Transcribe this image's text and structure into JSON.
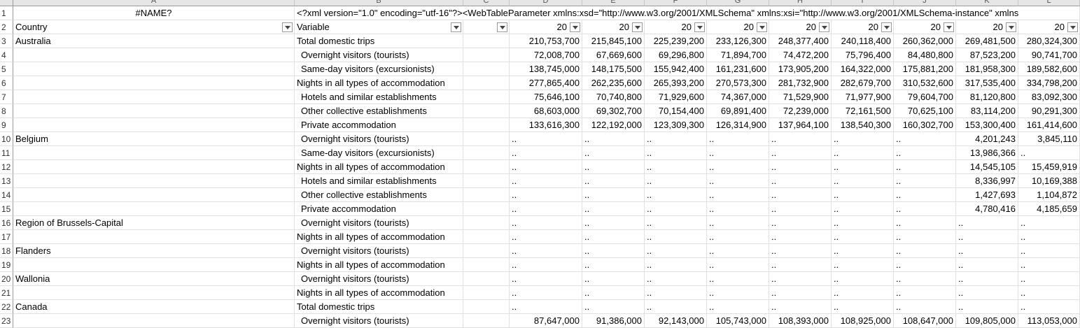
{
  "columns": [
    "A",
    "B",
    "C",
    "D",
    "E",
    "F",
    "G",
    "H",
    "I",
    "J",
    "K",
    "L"
  ],
  "row1": {
    "a": "#NAME?",
    "b": "<?xml version=\"1.0\" encoding=\"utf-16\"?><WebTableParameter xmlns:xsd=\"http://www.w3.org/2001/XMLSchema\" xmlns:xsi=\"http://www.w3.org/2001/XMLSchema-instance\" xmlns"
  },
  "headers": {
    "country": "Country",
    "variable": "Variable",
    "year_truncated": "20"
  },
  "rows": [
    {
      "n": "3",
      "country": "Australia",
      "variable": "Total domestic trips",
      "indent": false,
      "values": [
        "210,753,700",
        "215,845,100",
        "225,239,200",
        "233,126,300",
        "248,377,400",
        "240,118,400",
        "260,362,000",
        "269,481,500",
        "280,324,300"
      ]
    },
    {
      "n": "4",
      "country": "",
      "variable": "Overnight visitors (tourists)",
      "indent": true,
      "values": [
        "72,008,700",
        "67,669,600",
        "69,296,800",
        "71,894,700",
        "74,472,200",
        "75,796,400",
        "84,480,800",
        "87,523,200",
        "90,741,700"
      ]
    },
    {
      "n": "5",
      "country": "",
      "variable": "Same-day visitors (excursionists)",
      "indent": true,
      "values": [
        "138,745,000",
        "148,175,500",
        "155,942,400",
        "161,231,600",
        "173,905,200",
        "164,322,000",
        "175,881,200",
        "181,958,300",
        "189,582,600"
      ]
    },
    {
      "n": "6",
      "country": "",
      "variable": "Nights in all types of accommodation",
      "indent": false,
      "values": [
        "277,865,400",
        "262,235,600",
        "265,393,200",
        "270,573,300",
        "281,732,900",
        "282,679,700",
        "310,532,600",
        "317,535,400",
        "334,798,200"
      ]
    },
    {
      "n": "7",
      "country": "",
      "variable": "Hotels and similar establishments",
      "indent": true,
      "values": [
        "75,646,100",
        "70,740,800",
        "71,929,600",
        "74,367,000",
        "71,529,900",
        "71,977,900",
        "79,604,700",
        "81,120,800",
        "83,092,300"
      ]
    },
    {
      "n": "8",
      "country": "",
      "variable": "Other collective establishments",
      "indent": true,
      "values": [
        "68,603,000",
        "69,302,700",
        "70,154,400",
        "69,891,400",
        "72,239,000",
        "72,161,500",
        "70,625,100",
        "83,114,200",
        "90,291,300"
      ]
    },
    {
      "n": "9",
      "country": "",
      "variable": "Private accommodation",
      "indent": true,
      "values": [
        "133,616,300",
        "122,192,000",
        "123,309,300",
        "126,314,900",
        "137,964,100",
        "138,540,300",
        "160,302,700",
        "153,300,400",
        "161,414,600"
      ]
    },
    {
      "n": "10",
      "country": "Belgium",
      "variable": "Overnight visitors (tourists)",
      "indent": true,
      "values": [
        "..",
        "..",
        "..",
        "..",
        "..",
        "..",
        "..",
        "4,201,243",
        "3,845,110"
      ]
    },
    {
      "n": "11",
      "country": "",
      "variable": "Same-day visitors (excursionists)",
      "indent": true,
      "values": [
        "..",
        "..",
        "..",
        "..",
        "..",
        "..",
        "..",
        "13,986,366",
        ".."
      ]
    },
    {
      "n": "12",
      "country": "",
      "variable": "Nights in all types of accommodation",
      "indent": false,
      "values": [
        "..",
        "..",
        "..",
        "..",
        "..",
        "..",
        "..",
        "14,545,105",
        "15,459,919"
      ]
    },
    {
      "n": "13",
      "country": "",
      "variable": "Hotels and similar establishments",
      "indent": true,
      "values": [
        "..",
        "..",
        "..",
        "..",
        "..",
        "..",
        "..",
        "8,336,997",
        "10,169,388"
      ]
    },
    {
      "n": "14",
      "country": "",
      "variable": "Other collective establishments",
      "indent": true,
      "values": [
        "..",
        "..",
        "..",
        "..",
        "..",
        "..",
        "..",
        "1,427,693",
        "1,104,872"
      ]
    },
    {
      "n": "15",
      "country": "",
      "variable": "Private accommodation",
      "indent": true,
      "values": [
        "..",
        "..",
        "..",
        "..",
        "..",
        "..",
        "..",
        "4,780,416",
        "4,185,659"
      ]
    },
    {
      "n": "16",
      "country": " Region of Brussels-Capital",
      "variable": "Overnight visitors (tourists)",
      "indent": true,
      "values": [
        "..",
        "..",
        "..",
        "..",
        "..",
        "..",
        "..",
        "..",
        ".."
      ]
    },
    {
      "n": "17",
      "country": "",
      "variable": "Nights in all types of accommodation",
      "indent": false,
      "values": [
        "..",
        "..",
        "..",
        "..",
        "..",
        "..",
        "..",
        "..",
        ".."
      ]
    },
    {
      "n": "18",
      "country": " Flanders",
      "variable": "Overnight visitors (tourists)",
      "indent": true,
      "values": [
        "..",
        "..",
        "..",
        "..",
        "..",
        "..",
        "..",
        "..",
        ".."
      ]
    },
    {
      "n": "19",
      "country": "",
      "variable": "Nights in all types of accommodation",
      "indent": false,
      "values": [
        "..",
        "..",
        "..",
        "..",
        "..",
        "..",
        "..",
        "..",
        ".."
      ]
    },
    {
      "n": "20",
      "country": " Wallonia",
      "variable": "Overnight visitors (tourists)",
      "indent": true,
      "values": [
        "..",
        "..",
        "..",
        "..",
        "..",
        "..",
        "..",
        "..",
        ".."
      ]
    },
    {
      "n": "21",
      "country": "",
      "variable": "Nights in all types of accommodation",
      "indent": false,
      "values": [
        "..",
        "..",
        "..",
        "..",
        "..",
        "..",
        "..",
        "..",
        ".."
      ]
    },
    {
      "n": "22",
      "country": "Canada",
      "variable": "Total domestic trips",
      "indent": false,
      "values": [
        "..",
        "..",
        "..",
        "..",
        "..",
        "..",
        "..",
        "..",
        ".."
      ]
    },
    {
      "n": "23",
      "country": "",
      "variable": "Overnight visitors (tourists)",
      "indent": true,
      "values": [
        "87,647,000",
        "91,386,000",
        "92,143,000",
        "105,743,000",
        "108,393,000",
        "108,925,000",
        "108,647,000",
        "109,805,000",
        "113,053,000"
      ]
    }
  ]
}
